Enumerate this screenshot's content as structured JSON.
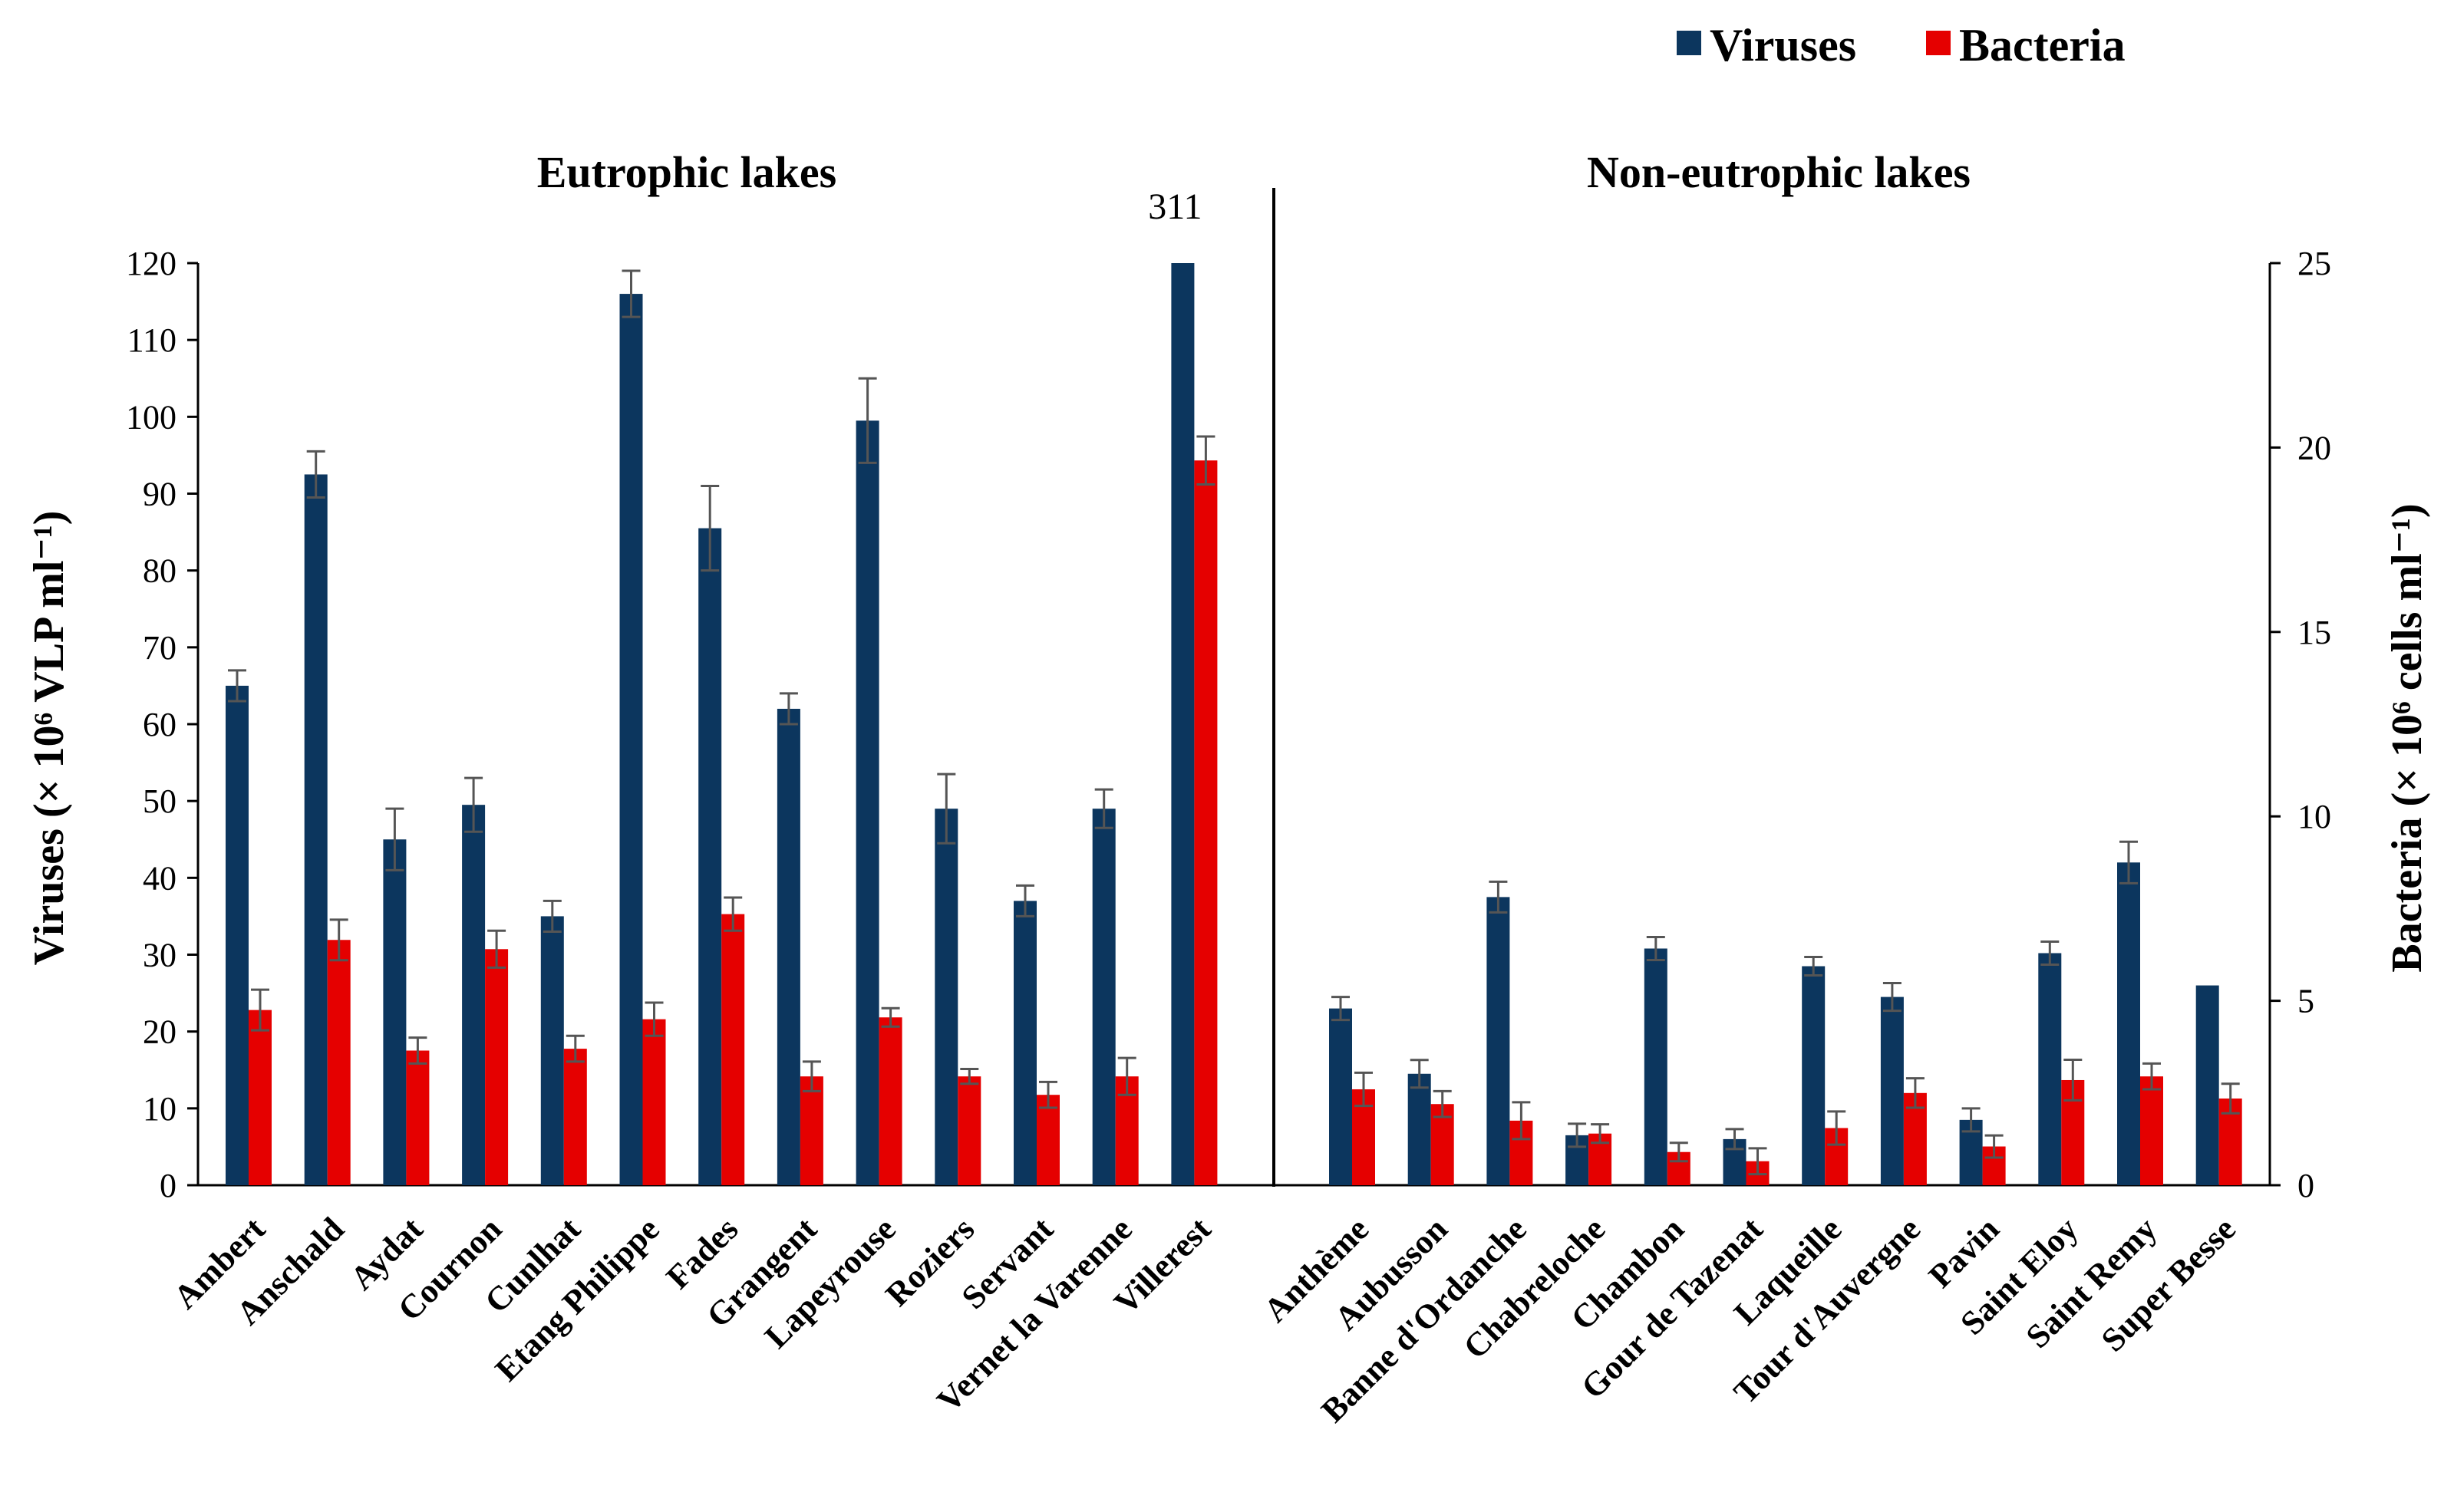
{
  "chart_data": {
    "type": "bar",
    "legend": {
      "placement": "top-right",
      "entries": [
        "Viruses",
        "Bacteria"
      ]
    },
    "colors": {
      "viruses": "#0c365e",
      "bacteria": "#e50000",
      "error_bar": "#555555",
      "axis": "#000000"
    },
    "group_titles": [
      "Eutrophic lakes",
      "Non-eutrophic lakes"
    ],
    "y_left": {
      "label": "Viruses (× 10⁶ VLP ml⁻¹)",
      "min": 0,
      "max": 120,
      "ticks": [
        "0",
        "10",
        "20",
        "30",
        "40",
        "50",
        "60",
        "70",
        "80",
        "90",
        "100",
        "110",
        "120"
      ]
    },
    "y_right": {
      "label": "Bacteria (× 10⁶ cells ml⁻¹)",
      "min": 0,
      "max": 25,
      "ticks": [
        "0",
        "5",
        "10",
        "15",
        "20",
        "25"
      ]
    },
    "annotation": {
      "text": "311",
      "category": "Villerest"
    },
    "groups": [
      {
        "name": "Eutrophic lakes",
        "categories": [
          "Ambert",
          "Anschald",
          "Aydat",
          "Cournon",
          "Cunlhat",
          "Etang Philippe",
          "Fades",
          "Grangent",
          "Lapeyrouse",
          "Roziers",
          "Servant",
          "Vernet la Varenne",
          "Villerest"
        ],
        "viruses": [
          65,
          92.5,
          45,
          49.5,
          35,
          116,
          85.5,
          62,
          99.5,
          49,
          37,
          49,
          311
        ],
        "viruses_err": [
          2,
          3,
          4,
          3.5,
          2,
          3,
          5.5,
          2,
          5.5,
          4.5,
          2,
          2.5,
          0
        ],
        "bacteria": [
          4.75,
          6.65,
          3.65,
          6.4,
          3.7,
          4.5,
          7.35,
          2.95,
          4.55,
          2.95,
          2.45,
          2.95,
          19.65
        ],
        "bacteria_err": [
          0.55,
          0.55,
          0.35,
          0.5,
          0.35,
          0.45,
          0.45,
          0.4,
          0.25,
          0.2,
          0.35,
          0.5,
          0.65
        ]
      },
      {
        "name": "Non-eutrophic lakes",
        "categories": [
          "Anthème",
          "Aubusson",
          "Banne d'Ordanche",
          "Chabreloche",
          "Chambon",
          "Gour de Tazenat",
          "Laqueille",
          "Tour d'Auvergne",
          "Pavin",
          "Saint Eloy",
          "Saint Remy",
          "Super Besse"
        ],
        "viruses": [
          23,
          14.5,
          37.5,
          6.5,
          30.8,
          6,
          28.5,
          24.5,
          8.5,
          30.2,
          42,
          26
        ],
        "viruses_err": [
          1.5,
          1.8,
          2,
          1.5,
          1.5,
          1.3,
          1.2,
          1.8,
          1.5,
          1.5,
          2.7,
          0
        ],
        "bacteria": [
          2.6,
          2.2,
          1.75,
          1.4,
          0.9,
          0.65,
          1.55,
          2.5,
          1.05,
          2.85,
          2.95,
          2.35
        ],
        "bacteria_err": [
          0.45,
          0.35,
          0.5,
          0.25,
          0.25,
          0.35,
          0.45,
          0.4,
          0.3,
          0.55,
          0.35,
          0.4
        ]
      }
    ]
  }
}
